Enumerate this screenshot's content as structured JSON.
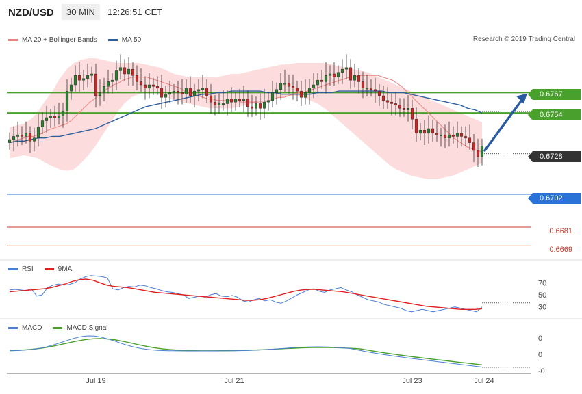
{
  "header": {
    "pair": "NZD/USD",
    "timeframe": "30 MIN",
    "time": "12:26:51 CET"
  },
  "legends": {
    "price": [
      {
        "label": "MA 20 + Bollinger Bands",
        "color": "#f08080"
      },
      {
        "label": "MA 50",
        "color": "#2c5f9e"
      }
    ],
    "rsi": [
      {
        "label": "RSI",
        "color": "#4a7fd4"
      },
      {
        "label": "9MA",
        "color": "#e02020"
      }
    ],
    "macd": [
      {
        "label": "MACD",
        "color": "#4a7fd4"
      },
      {
        "label": "MACD Signal",
        "color": "#4aa02c"
      }
    ]
  },
  "credit": "Research © 2019 Trading Central",
  "levels": {
    "resistance": [
      {
        "value": "0.6767",
        "color": "#4aa02c"
      },
      {
        "value": "0.6754",
        "color": "#4aa02c"
      }
    ],
    "current": {
      "value": "0.6728",
      "color": "#333333"
    },
    "pivot": {
      "value": "0.6702",
      "color": "#2a72d8"
    },
    "support": [
      {
        "value": "0.6681",
        "color": "#c0392b"
      },
      {
        "value": "0.6669",
        "color": "#c0392b"
      }
    ]
  },
  "x_axis": {
    "ticks": [
      "Jul 19",
      "Jul 21",
      "Jul 23",
      "Jul 24"
    ]
  },
  "rsi_axis": {
    "ticks": [
      "70",
      "50",
      "30"
    ]
  },
  "macd_axis": {
    "ticks": [
      "0",
      "0",
      "-0"
    ]
  },
  "chart_data": {
    "type": "candlestick",
    "price_range": [
      0.666,
      0.68
    ],
    "closes": [
      0.6737,
      0.6739,
      0.674,
      0.6739,
      0.6741,
      0.6736,
      0.6738,
      0.6745,
      0.6749,
      0.6751,
      0.6752,
      0.6751,
      0.6752,
      0.6755,
      0.6768,
      0.6772,
      0.6778,
      0.6775,
      0.6776,
      0.6778,
      0.6779,
      0.6765,
      0.6767,
      0.6771,
      0.6774,
      0.6775,
      0.6781,
      0.6783,
      0.6779,
      0.6782,
      0.6778,
      0.6774,
      0.6772,
      0.677,
      0.6772,
      0.6771,
      0.677,
      0.6764,
      0.6766,
      0.6767,
      0.6768,
      0.6767,
      0.6766,
      0.677,
      0.6765,
      0.6768,
      0.6769,
      0.677,
      0.6765,
      0.6761,
      0.6759,
      0.676,
      0.676,
      0.6763,
      0.6761,
      0.6763,
      0.6762,
      0.6763,
      0.6758,
      0.6757,
      0.676,
      0.6757,
      0.6761,
      0.6762,
      0.6767,
      0.6769,
      0.6773,
      0.6773,
      0.6771,
      0.677,
      0.6768,
      0.6764,
      0.6767,
      0.677,
      0.6772,
      0.6775,
      0.6774,
      0.6778,
      0.6779,
      0.6777,
      0.678,
      0.6782,
      0.6783,
      0.6775,
      0.6778,
      0.6774,
      0.677,
      0.677,
      0.6769,
      0.6768,
      0.6765,
      0.6762,
      0.6761,
      0.676,
      0.6759,
      0.6757,
      0.6756,
      0.6757,
      0.675,
      0.6741,
      0.6743,
      0.6741,
      0.6744,
      0.6741,
      0.674,
      0.674,
      0.6738,
      0.674,
      0.6739,
      0.6741,
      0.6739,
      0.6738,
      0.6735,
      0.673,
      0.6726,
      0.6733
    ],
    "ma20": [
      0.6735,
      0.6736,
      0.6737,
      0.6738,
      0.6739,
      0.6739,
      0.674,
      0.6741,
      0.6743,
      0.6744,
      0.6745,
      0.6746,
      0.6747,
      0.6749,
      0.6752,
      0.6755,
      0.6758,
      0.6761,
      0.6763,
      0.6766,
      0.6768,
      0.677,
      0.6772,
      0.6773,
      0.6775,
      0.6776,
      0.6777,
      0.6777,
      0.6777,
      0.6777,
      0.6776,
      0.6775,
      0.6774,
      0.6773,
      0.6772,
      0.6771,
      0.677,
      0.6768,
      0.6767,
      0.6766,
      0.6765,
      0.6764,
      0.6763,
      0.6763,
      0.6762,
      0.6762,
      0.6762,
      0.6762,
      0.6762,
      0.6761,
      0.6761,
      0.6761,
      0.6761,
      0.6761,
      0.6761,
      0.6762,
      0.6763,
      0.6764,
      0.6764,
      0.6765,
      0.6766,
      0.6767,
      0.6767,
      0.6768,
      0.6769,
      0.677,
      0.6771,
      0.6772,
      0.6773,
      0.6774,
      0.6775,
      0.6776,
      0.6777,
      0.6777,
      0.6778,
      0.6778,
      0.6778,
      0.6778,
      0.6778,
      0.6777,
      0.6776,
      0.6775,
      0.6773,
      0.6771,
      0.6768,
      0.6765,
      0.6762,
      0.6759,
      0.6756,
      0.6753,
      0.675,
      0.6747,
      0.6744,
      0.6741,
      0.6738,
      0.6736,
      0.6734,
      0.6732,
      0.6731,
      0.673,
      0.6729
    ],
    "ma50": [
      0.6735,
      0.6736,
      0.6736,
      0.6737,
      0.6738,
      0.6738,
      0.6739,
      0.6739,
      0.674,
      0.6741,
      0.6742,
      0.6743,
      0.6744,
      0.6746,
      0.6748,
      0.675,
      0.6752,
      0.6754,
      0.6756,
      0.6758,
      0.6759,
      0.676,
      0.6761,
      0.6762,
      0.6763,
      0.6764,
      0.6765,
      0.6766,
      0.6766,
      0.6767,
      0.6767,
      0.6768,
      0.6768,
      0.6768,
      0.6768,
      0.6768,
      0.6767,
      0.6767,
      0.6766,
      0.6766,
      0.6766,
      0.6766,
      0.6766,
      0.6767,
      0.6767,
      0.6767,
      0.6768,
      0.6768,
      0.6768,
      0.6768,
      0.6768,
      0.6768,
      0.6768,
      0.6767,
      0.6767,
      0.6767,
      0.6766,
      0.6765,
      0.6764,
      0.6763,
      0.6762,
      0.6761,
      0.676,
      0.6759,
      0.6757,
      0.6756,
      0.6754
    ],
    "bb_upper": [
      0.6745,
      0.6746,
      0.6747,
      0.675,
      0.6755,
      0.6762,
      0.6768,
      0.6776,
      0.6782,
      0.6786,
      0.6788,
      0.6789,
      0.6789,
      0.6788,
      0.6787,
      0.6786,
      0.6786,
      0.6786,
      0.6786,
      0.6785,
      0.6784,
      0.6783,
      0.6781,
      0.6779,
      0.6778,
      0.6777,
      0.6777,
      0.6777,
      0.6777,
      0.6777,
      0.6778,
      0.6779,
      0.6779,
      0.678,
      0.6781,
      0.6782,
      0.6783,
      0.6784,
      0.6785,
      0.6785,
      0.6786,
      0.6786,
      0.6786,
      0.6786,
      0.6786,
      0.6785,
      0.6784,
      0.6783,
      0.6782,
      0.6781,
      0.678,
      0.6778,
      0.6776,
      0.6774,
      0.6772,
      0.677,
      0.6768,
      0.6766,
      0.6764,
      0.6762,
      0.676,
      0.6758,
      0.6756,
      0.6754,
      0.6752,
      0.675,
      0.6748
    ],
    "bb_lower": [
      0.6725,
      0.6726,
      0.6727,
      0.6726,
      0.6725,
      0.6722,
      0.672,
      0.6718,
      0.6717,
      0.6718,
      0.6722,
      0.6727,
      0.6733,
      0.674,
      0.6747,
      0.6754,
      0.676,
      0.6764,
      0.6766,
      0.6767,
      0.6767,
      0.6766,
      0.6764,
      0.6762,
      0.6761,
      0.676,
      0.6759,
      0.6758,
      0.6757,
      0.6757,
      0.6757,
      0.6757,
      0.6758,
      0.6759,
      0.676,
      0.6761,
      0.6762,
      0.6763,
      0.6764,
      0.6765,
      0.6765,
      0.6764,
      0.6762,
      0.676,
      0.6757,
      0.6753,
      0.6749,
      0.6745,
      0.6741,
      0.6737,
      0.6733,
      0.6729,
      0.6725,
      0.6721,
      0.6718,
      0.6716,
      0.6714,
      0.6713,
      0.6712,
      0.6712,
      0.6712,
      0.6713,
      0.6714,
      0.6716,
      0.6718,
      0.672,
      0.6722
    ],
    "rsi": [
      58,
      59,
      58,
      57,
      60,
      48,
      50,
      62,
      66,
      68,
      66,
      67,
      70,
      76,
      80,
      82,
      81,
      80,
      78,
      60,
      58,
      62,
      64,
      63,
      66,
      65,
      62,
      60,
      57,
      55,
      54,
      52,
      50,
      44,
      46,
      48,
      46,
      50,
      52,
      48,
      47,
      49,
      46,
      40,
      38,
      42,
      44,
      40,
      42,
      38,
      36,
      40,
      45,
      50,
      54,
      58,
      60,
      56,
      54,
      58,
      60,
      62,
      58,
      55,
      50,
      46,
      42,
      40,
      38,
      34,
      32,
      30,
      28,
      24,
      22,
      24,
      26,
      24,
      22,
      24,
      26,
      28,
      30,
      28,
      26,
      24,
      22,
      30
    ],
    "rsi_ma9": [
      55,
      56,
      57,
      58,
      59,
      60,
      62,
      65,
      68,
      72,
      75,
      76,
      74,
      70,
      66,
      64,
      63,
      62,
      60,
      58,
      56,
      54,
      53,
      52,
      51,
      50,
      49,
      48,
      47,
      46,
      45,
      44,
      43,
      42,
      41,
      41,
      42,
      44,
      47,
      50,
      53,
      56,
      58,
      59,
      59,
      58,
      57,
      56,
      55,
      53,
      51,
      49,
      47,
      45,
      43,
      41,
      39,
      37,
      35,
      33,
      31,
      30,
      29,
      28,
      27,
      26,
      26,
      26,
      27
    ]
  }
}
